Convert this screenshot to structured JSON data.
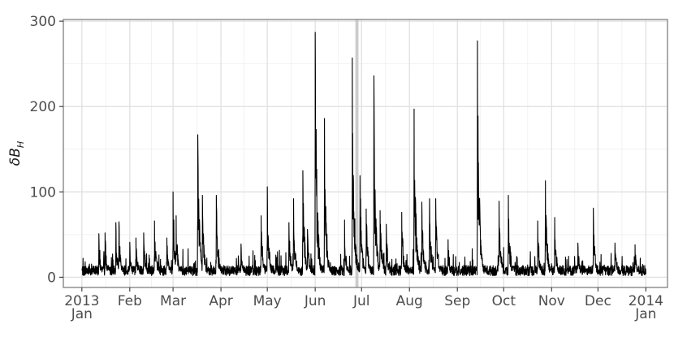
{
  "chart_data": {
    "type": "line",
    "ylabel": "δB",
    "ylabel_subscript": "H",
    "ylim": [
      -12,
      302
    ],
    "xlim": [
      "2012-12-20",
      "2014-01-15"
    ],
    "grid": true,
    "y_ticks": [
      0,
      100,
      200,
      300
    ],
    "x_ticks": [
      {
        "date": "2013-01-01",
        "label": "2013",
        "sublabel": "Jan"
      },
      {
        "date": "2013-02-01",
        "label": "Feb",
        "sublabel": ""
      },
      {
        "date": "2013-03-01",
        "label": "Mar",
        "sublabel": ""
      },
      {
        "date": "2013-04-01",
        "label": "Apr",
        "sublabel": ""
      },
      {
        "date": "2013-05-01",
        "label": "May",
        "sublabel": ""
      },
      {
        "date": "2013-06-01",
        "label": "Jun",
        "sublabel": ""
      },
      {
        "date": "2013-07-01",
        "label": "Jul",
        "sublabel": ""
      },
      {
        "date": "2013-08-01",
        "label": "Aug",
        "sublabel": ""
      },
      {
        "date": "2013-09-01",
        "label": "Sep",
        "sublabel": ""
      },
      {
        "date": "2013-10-01",
        "label": "Oct",
        "sublabel": ""
      },
      {
        "date": "2013-11-01",
        "label": "Nov",
        "sublabel": ""
      },
      {
        "date": "2013-12-01",
        "label": "Dec",
        "sublabel": ""
      },
      {
        "date": "2014-01-01",
        "label": "2014",
        "sublabel": "Jan"
      }
    ],
    "highlight_span": {
      "start": "2013-06-27",
      "end": "2013-06-29",
      "color": "#cccccc"
    },
    "line_color": "#000000",
    "background_level": 12,
    "peaks": [
      {
        "date": "2013-01-12",
        "value": 51
      },
      {
        "date": "2013-01-16",
        "value": 52
      },
      {
        "date": "2013-01-23",
        "value": 64
      },
      {
        "date": "2013-01-25",
        "value": 65
      },
      {
        "date": "2013-02-01",
        "value": 41
      },
      {
        "date": "2013-02-05",
        "value": 46
      },
      {
        "date": "2013-02-10",
        "value": 52
      },
      {
        "date": "2013-02-17",
        "value": 66
      },
      {
        "date": "2013-02-25",
        "value": 46
      },
      {
        "date": "2013-03-01",
        "value": 100
      },
      {
        "date": "2013-03-03",
        "value": 72
      },
      {
        "date": "2013-03-17",
        "value": 167
      },
      {
        "date": "2013-03-20",
        "value": 96
      },
      {
        "date": "2013-03-29",
        "value": 96
      },
      {
        "date": "2013-04-14",
        "value": 39
      },
      {
        "date": "2013-04-27",
        "value": 72
      },
      {
        "date": "2013-05-01",
        "value": 106
      },
      {
        "date": "2013-05-15",
        "value": 64
      },
      {
        "date": "2013-05-18",
        "value": 92
      },
      {
        "date": "2013-05-24",
        "value": 125
      },
      {
        "date": "2013-05-27",
        "value": 56
      },
      {
        "date": "2013-06-01",
        "value": 287
      },
      {
        "date": "2013-06-07",
        "value": 186
      },
      {
        "date": "2013-06-20",
        "value": 67
      },
      {
        "date": "2013-06-25",
        "value": 257
      },
      {
        "date": "2013-06-30",
        "value": 119
      },
      {
        "date": "2013-07-04",
        "value": 80
      },
      {
        "date": "2013-07-09",
        "value": 236
      },
      {
        "date": "2013-07-13",
        "value": 78
      },
      {
        "date": "2013-07-17",
        "value": 62
      },
      {
        "date": "2013-07-27",
        "value": 76
      },
      {
        "date": "2013-08-04",
        "value": 197
      },
      {
        "date": "2013-08-09",
        "value": 88
      },
      {
        "date": "2013-08-14",
        "value": 92
      },
      {
        "date": "2013-08-18",
        "value": 92
      },
      {
        "date": "2013-08-26",
        "value": 44
      },
      {
        "date": "2013-09-14",
        "value": 277
      },
      {
        "date": "2013-09-28",
        "value": 89
      },
      {
        "date": "2013-10-04",
        "value": 96
      },
      {
        "date": "2013-10-23",
        "value": 66
      },
      {
        "date": "2013-10-28",
        "value": 113
      },
      {
        "date": "2013-11-03",
        "value": 70
      },
      {
        "date": "2013-11-18",
        "value": 40
      },
      {
        "date": "2013-11-28",
        "value": 81
      },
      {
        "date": "2013-12-12",
        "value": 40
      },
      {
        "date": "2013-12-25",
        "value": 38
      }
    ]
  }
}
